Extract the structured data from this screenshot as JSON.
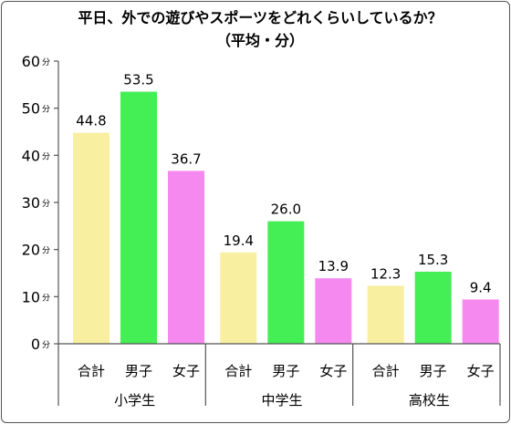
{
  "chart_data": {
    "type": "bar",
    "title": "平日、外での遊びやスポーツをどれくらいしているか？",
    "subtitle": "（平均・分）",
    "unit_label": "分",
    "ylim": [
      0,
      60
    ],
    "yticks": [
      "0",
      "10",
      "20",
      "30",
      "40",
      "50",
      "60"
    ],
    "groups": [
      {
        "name": "小学生",
        "bars": [
          {
            "label": "合計",
            "value": 44.8,
            "value_text": "44.8",
            "color": "#f8f0a0"
          },
          {
            "label": "男子",
            "value": 53.5,
            "value_text": "53.5",
            "color": "#44ee55"
          },
          {
            "label": "女子",
            "value": 36.7,
            "value_text": "36.7",
            "color": "#f589f0"
          }
        ]
      },
      {
        "name": "中学生",
        "bars": [
          {
            "label": "合計",
            "value": 19.4,
            "value_text": "19.4",
            "color": "#f8f0a0"
          },
          {
            "label": "男子",
            "value": 26.0,
            "value_text": "26.0",
            "color": "#44ee55"
          },
          {
            "label": "女子",
            "value": 13.9,
            "value_text": "13.9",
            "color": "#f589f0"
          }
        ]
      },
      {
        "name": "高校生",
        "bars": [
          {
            "label": "合計",
            "value": 12.3,
            "value_text": "12.3",
            "color": "#f8f0a0"
          },
          {
            "label": "男子",
            "value": 15.3,
            "value_text": "15.3",
            "color": "#44ee55"
          },
          {
            "label": "女子",
            "value": 9.4,
            "value_text": "9.4",
            "color": "#f589f0"
          }
        ]
      }
    ]
  }
}
